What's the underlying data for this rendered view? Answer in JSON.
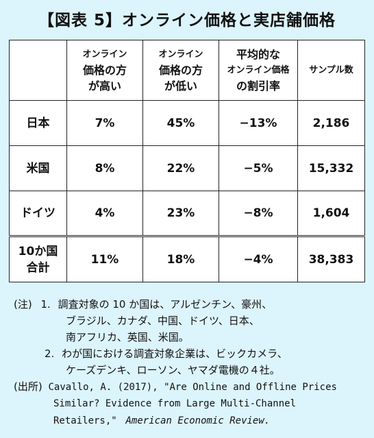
{
  "title": "【図表 5】オンライン価格と実店舗価格",
  "table": {
    "headers": [
      "",
      [
        "オンライン",
        "価格の方",
        "が高い"
      ],
      [
        "オンライン",
        "価格の方",
        "が低い"
      ],
      [
        "平均的な",
        "オンライン価格",
        "の割引率"
      ],
      "サンプル数"
    ],
    "rows": [
      {
        "name": "日本",
        "higher": "7%",
        "lower": "45%",
        "discount": "−13%",
        "samples": "2,186"
      },
      {
        "name": "米国",
        "higher": "8%",
        "lower": "22%",
        "discount": "−5%",
        "samples": "15,332"
      },
      {
        "name": "ドイツ",
        "higher": "4%",
        "lower": "23%",
        "discount": "−8%",
        "samples": "1,604"
      },
      {
        "name": [
          "10か国",
          "合計"
        ],
        "higher": "11%",
        "lower": "18%",
        "discount": "−4%",
        "samples": "38,383"
      }
    ]
  },
  "notes": {
    "note_label": "(注)",
    "note1_num": "1.",
    "note1_lines": [
      "調査対象の 10 か国は、アルゼンチン、豪州、",
      "ブラジル、カナダ、中国、ドイツ、日本、",
      "南アフリカ、英国、米国。"
    ],
    "note2_num": "2.",
    "note2_lines": [
      "わが国における調査対象企業は、ビックカメラ、",
      "ケーズデンキ、ローソン、ヤマダ電機の４社。"
    ],
    "source_label": "(出所)",
    "source_lines": [
      "Cavallo, A. (2017), \"Are Online and Offline Prices",
      "Similar? Evidence from Large Multi-Channel",
      "Retailers,\""
    ],
    "source_journal": "American Economic Review."
  }
}
